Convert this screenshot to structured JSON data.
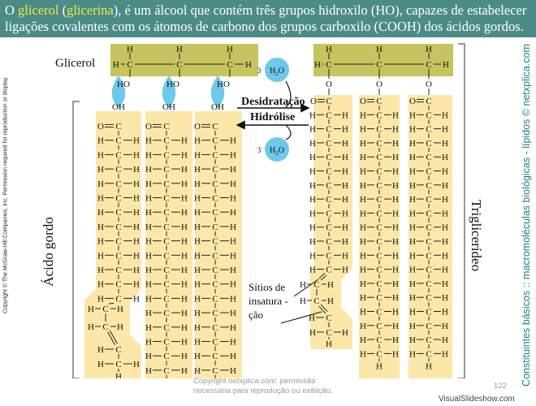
{
  "header": {
    "line1_part1": "O ",
    "glicerol": "glicerol",
    "line1_part2": " (",
    "glicerina": "glicerina",
    "line1_part3": "), é um álcool que contém três grupos hidroxilo (HO), capazes de estabelecer",
    "line2": "ligações covalentes com os átomos de carbono dos grupos carboxilo (COOH) dos ácidos gordos."
  },
  "labels": {
    "glicerol": "Glicerol",
    "acido_gordo": "Ácido gordo",
    "triglicerideo": "Triglicerídeo",
    "desidratacao": "Desidratação",
    "hidrolise": "Hidrólise",
    "sitios_l1": "Sítios de",
    "sitios_l2": "insatura -",
    "sitios_l3": "ção"
  },
  "water": {
    "coef": "3",
    "formula_h": "H",
    "formula_sub": "2",
    "formula_o": "O"
  },
  "atoms": {
    "H": "H",
    "C": "C",
    "O": "O",
    "HO": "HO",
    "OH": "OH",
    "eq": "="
  },
  "side_left": "Copyright © The McGraw-Hill Companies, Inc. Permission required for reproduction or display.",
  "side_right": "Constituintes básicos :: macromoléculas biológicas - lípidos © netxplica.com",
  "watermark_l1": "Copyright netxplica.com: permissão",
  "watermark_l2": "necessária para reprodução ou exibição.",
  "page_number": "122",
  "brand": "VisualSlideshow.com",
  "colors": {
    "header_bg": "#4c8c88",
    "highlight": "#f0ea3c",
    "chain": "#fce7a8",
    "glycerol_box": "#c5c45e",
    "water": "#6cc9ea",
    "side_text": "#1e7b86"
  }
}
